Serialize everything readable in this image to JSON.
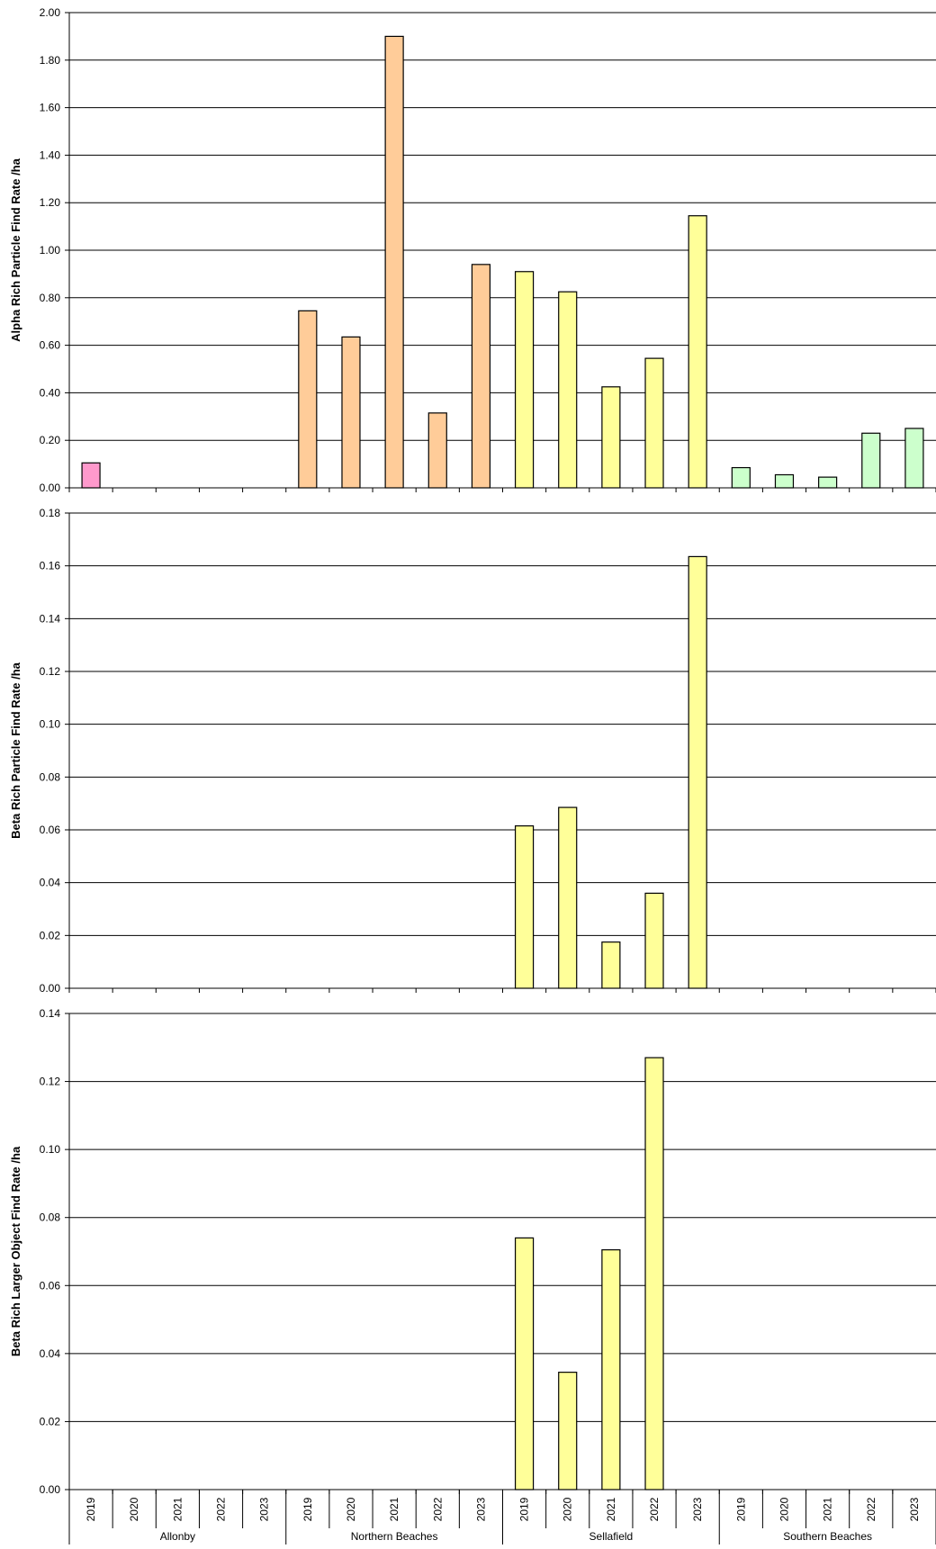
{
  "colors": {
    "Allonby": "#ff99cc",
    "Northern Beaches": "#ffcc99",
    "Sellafield": "#ffff99",
    "Southern Beaches": "#ccffcc",
    "bar_stroke": "#000000",
    "grid": "#000000",
    "background": "#ffffff"
  },
  "chart_data": [
    {
      "type": "bar",
      "ylabel": "Alpha Rich Particle Find Rate /ha",
      "ylim": [
        0,
        2.0
      ],
      "yticks": [
        "0.00",
        "0.20",
        "0.40",
        "0.60",
        "0.80",
        "1.00",
        "1.20",
        "1.40",
        "1.60",
        "1.80",
        "2.00"
      ],
      "grid": true,
      "groups": [
        "Allonby",
        "Northern Beaches",
        "Sellafield",
        "Southern Beaches"
      ],
      "years": [
        "2019",
        "2020",
        "2021",
        "2022",
        "2023"
      ],
      "values": [
        0.105,
        0,
        0,
        0,
        0,
        0.745,
        0.635,
        1.9,
        0.315,
        0.94,
        0.91,
        0.825,
        0.425,
        0.545,
        1.145,
        0.085,
        0.055,
        0.045,
        0.23,
        0.25
      ]
    },
    {
      "type": "bar",
      "ylabel": "Beta Rich Particle Find Rate /ha",
      "ylim": [
        0,
        0.18
      ],
      "yticks": [
        "0.00",
        "0.02",
        "0.04",
        "0.06",
        "0.08",
        "0.10",
        "0.12",
        "0.14",
        "0.16",
        "0.18"
      ],
      "grid": true,
      "groups": [
        "Allonby",
        "Northern Beaches",
        "Sellafield",
        "Southern Beaches"
      ],
      "years": [
        "2019",
        "2020",
        "2021",
        "2022",
        "2023"
      ],
      "values": [
        0,
        0,
        0,
        0,
        0,
        0,
        0,
        0,
        0,
        0,
        0.0615,
        0.0685,
        0.0175,
        0.036,
        0.1635,
        0,
        0,
        0,
        0,
        0
      ]
    },
    {
      "type": "bar",
      "ylabel": "Beta Rich Larger Object  Find Rate /ha",
      "ylim": [
        0,
        0.14
      ],
      "yticks": [
        "0.00",
        "0.02",
        "0.04",
        "0.06",
        "0.08",
        "0.10",
        "0.12",
        "0.14"
      ],
      "grid": true,
      "groups": [
        "Allonby",
        "Northern Beaches",
        "Sellafield",
        "Southern Beaches"
      ],
      "years": [
        "2019",
        "2020",
        "2021",
        "2022",
        "2023"
      ],
      "values": [
        0,
        0,
        0,
        0,
        0,
        0,
        0,
        0,
        0,
        0,
        0.074,
        0.0345,
        0.0705,
        0.127,
        0,
        0,
        0,
        0,
        0,
        0
      ]
    }
  ]
}
